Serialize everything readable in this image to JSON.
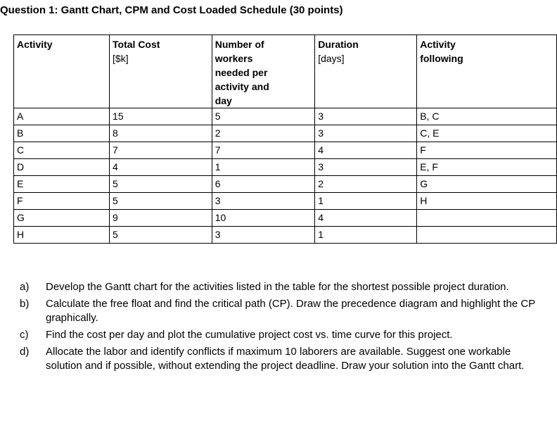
{
  "title": "Question 1: Gantt Chart, CPM and Cost Loaded Schedule (30 points)",
  "table": {
    "headers": [
      {
        "main": "Activity",
        "sub": ""
      },
      {
        "main": "Total Cost",
        "sub": "[$k]"
      },
      {
        "main": "Number of workers needed per activity and day",
        "sub": ""
      },
      {
        "main": "Duration",
        "sub": "[days]"
      },
      {
        "main": "Activity following",
        "sub": ""
      }
    ],
    "rows": [
      [
        "A",
        "15",
        "5",
        "3",
        "B, C"
      ],
      [
        "B",
        "8",
        "2",
        "3",
        "C, E"
      ],
      [
        "C",
        "7",
        "7",
        "4",
        "F"
      ],
      [
        "D",
        "4",
        "1",
        "3",
        "E, F"
      ],
      [
        "E",
        "5",
        "6",
        "2",
        "G"
      ],
      [
        "F",
        "5",
        "3",
        "1",
        "H"
      ],
      [
        "G",
        "9",
        "10",
        "4",
        ""
      ],
      [
        "H",
        "5",
        "3",
        "1",
        ""
      ]
    ]
  },
  "questions": [
    {
      "label": "a)",
      "text": "Develop the Gantt chart for the activities listed in the table for the shortest possible project duration."
    },
    {
      "label": "b)",
      "text": "Calculate the free float and find the critical path (CP). Draw the precedence diagram and highlight the CP graphically."
    },
    {
      "label": "c)",
      "text": "Find the cost per day and plot the cumulative project cost vs. time curve for this project."
    },
    {
      "label": "d)",
      "text": "Allocate the labor and identify conflicts if maximum 10 laborers are available. Suggest one workable solution and if possible, without extending the project deadline. Draw your solution into the Gantt chart."
    }
  ]
}
